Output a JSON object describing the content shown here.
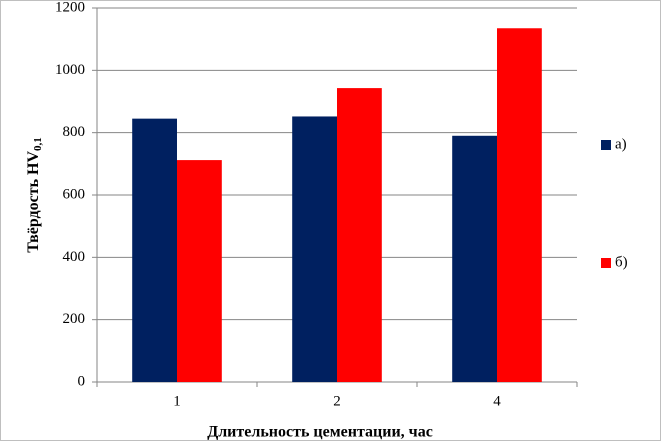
{
  "chart_data": {
    "type": "bar",
    "y_label": "Твёрдость HV",
    "y_label_subscript": "0,1",
    "x_label": "Длительность цементации, час",
    "categories": [
      "1",
      "2",
      "4"
    ],
    "series": [
      {
        "name": "а)",
        "color": "#002060",
        "values": [
          845,
          852,
          790
        ]
      },
      {
        "name": "б)",
        "color": "#ff0000",
        "values": [
          712,
          943,
          1135
        ]
      }
    ],
    "ylim": [
      0,
      1200
    ],
    "yticks": [
      0,
      200,
      400,
      600,
      800,
      1000,
      1200
    ],
    "grid": true,
    "legend": "right"
  }
}
